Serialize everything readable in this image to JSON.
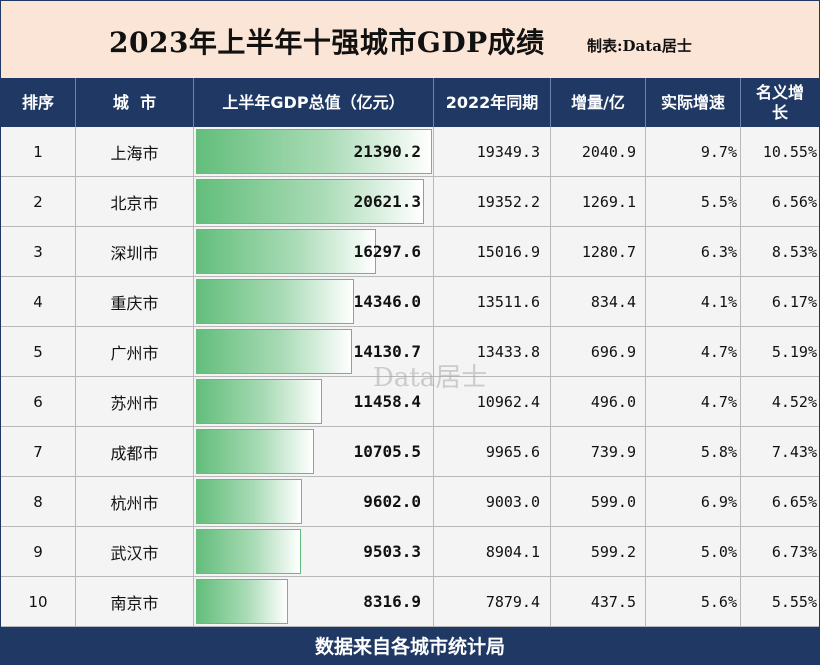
{
  "header": {
    "title": "2023年上半年十强城市GDP成绩",
    "maker": "制表:Data居士"
  },
  "columns": [
    "排序",
    "城  市",
    "上半年GDP总值（亿元）",
    "2022年同期",
    "增量/亿",
    "实际增速",
    "名义增长"
  ],
  "chart_data": {
    "type": "table",
    "columns": [
      "排序",
      "城  市",
      "上半年GDP总值（亿元）",
      "2022年同期",
      "增量/亿",
      "实际增速",
      "名义增长"
    ],
    "rows": [
      {
        "rank": "1",
        "city": "上海市",
        "gdp": "21390.2",
        "prev": "19349.3",
        "inc": "2040.9",
        "real": "9.7%",
        "nominal": "10.55%"
      },
      {
        "rank": "2",
        "city": "北京市",
        "gdp": "20621.3",
        "prev": "19352.2",
        "inc": "1269.1",
        "real": "5.5%",
        "nominal": "6.56%"
      },
      {
        "rank": "3",
        "city": "深圳市",
        "gdp": "16297.6",
        "prev": "15016.9",
        "inc": "1280.7",
        "real": "6.3%",
        "nominal": "8.53%"
      },
      {
        "rank": "4",
        "city": "重庆市",
        "gdp": "14346.0",
        "prev": "13511.6",
        "inc": "834.4",
        "real": "4.1%",
        "nominal": "6.17%"
      },
      {
        "rank": "5",
        "city": "广州市",
        "gdp": "14130.7",
        "prev": "13433.8",
        "inc": "696.9",
        "real": "4.7%",
        "nominal": "5.19%"
      },
      {
        "rank": "6",
        "city": "苏州市",
        "gdp": "11458.4",
        "prev": "10962.4",
        "inc": "496.0",
        "real": "4.7%",
        "nominal": "4.52%"
      },
      {
        "rank": "7",
        "city": "成都市",
        "gdp": "10705.5",
        "prev": "9965.6",
        "inc": "739.9",
        "real": "5.8%",
        "nominal": "7.43%"
      },
      {
        "rank": "8",
        "city": "杭州市",
        "gdp": "9602.0",
        "prev": "9003.0",
        "inc": "599.0",
        "real": "6.9%",
        "nominal": "6.65%"
      },
      {
        "rank": "9",
        "city": "武汉市",
        "gdp": "9503.3",
        "prev": "8904.1",
        "inc": "599.2",
        "real": "5.0%",
        "nominal": "6.73%"
      },
      {
        "rank": "10",
        "city": "南京市",
        "gdp": "8316.9",
        "prev": "7879.4",
        "inc": "437.5",
        "real": "5.6%",
        "nominal": "5.55%"
      }
    ],
    "data_bar_max": 21390.2
  },
  "footer": "数据来自各城市统计局",
  "watermark": "Data居士",
  "colors": {
    "header_bg": "#1f3864",
    "title_bg": "#fbe5d6",
    "bar_green": "#63be7b"
  }
}
